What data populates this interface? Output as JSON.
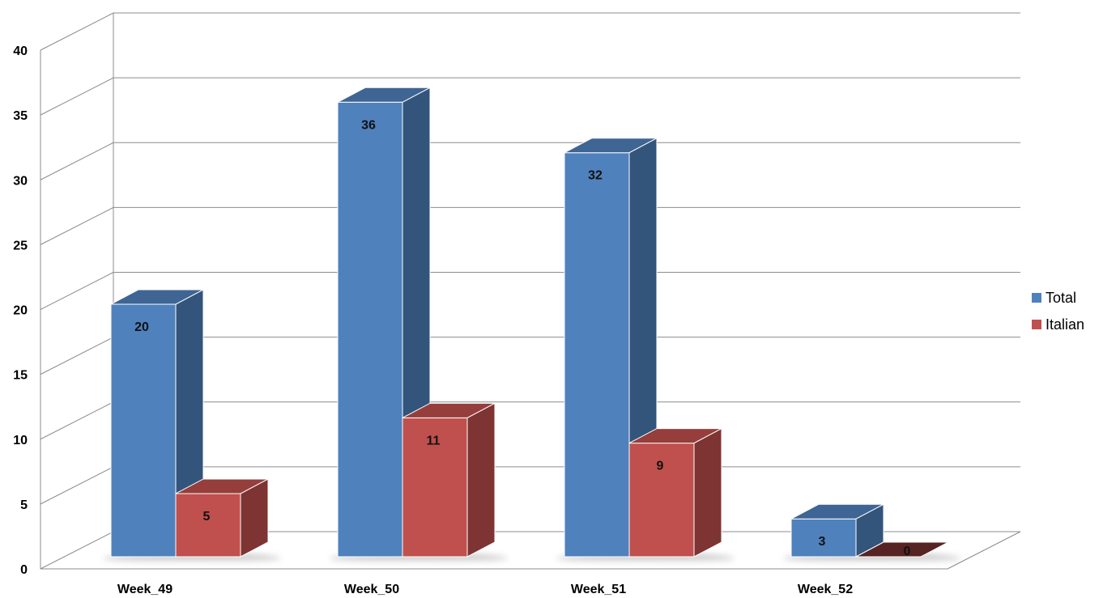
{
  "chart_data": {
    "type": "bar",
    "categories": [
      "Week_49",
      "Week_50",
      "Week_51",
      "Week_52"
    ],
    "series": [
      {
        "name": "Total",
        "values": [
          20,
          36,
          32,
          3
        ],
        "color": "#4f81bd"
      },
      {
        "name": "Italian",
        "values": [
          5,
          11,
          9,
          0
        ],
        "color": "#c0504d"
      }
    ],
    "title": "",
    "xlabel": "",
    "ylabel": "",
    "ylim": [
      0,
      40
    ],
    "yticks": [
      0,
      5,
      10,
      15,
      20,
      25,
      30,
      35,
      40
    ],
    "grid": true,
    "legend": "right",
    "style": "3d-clustered-column"
  }
}
